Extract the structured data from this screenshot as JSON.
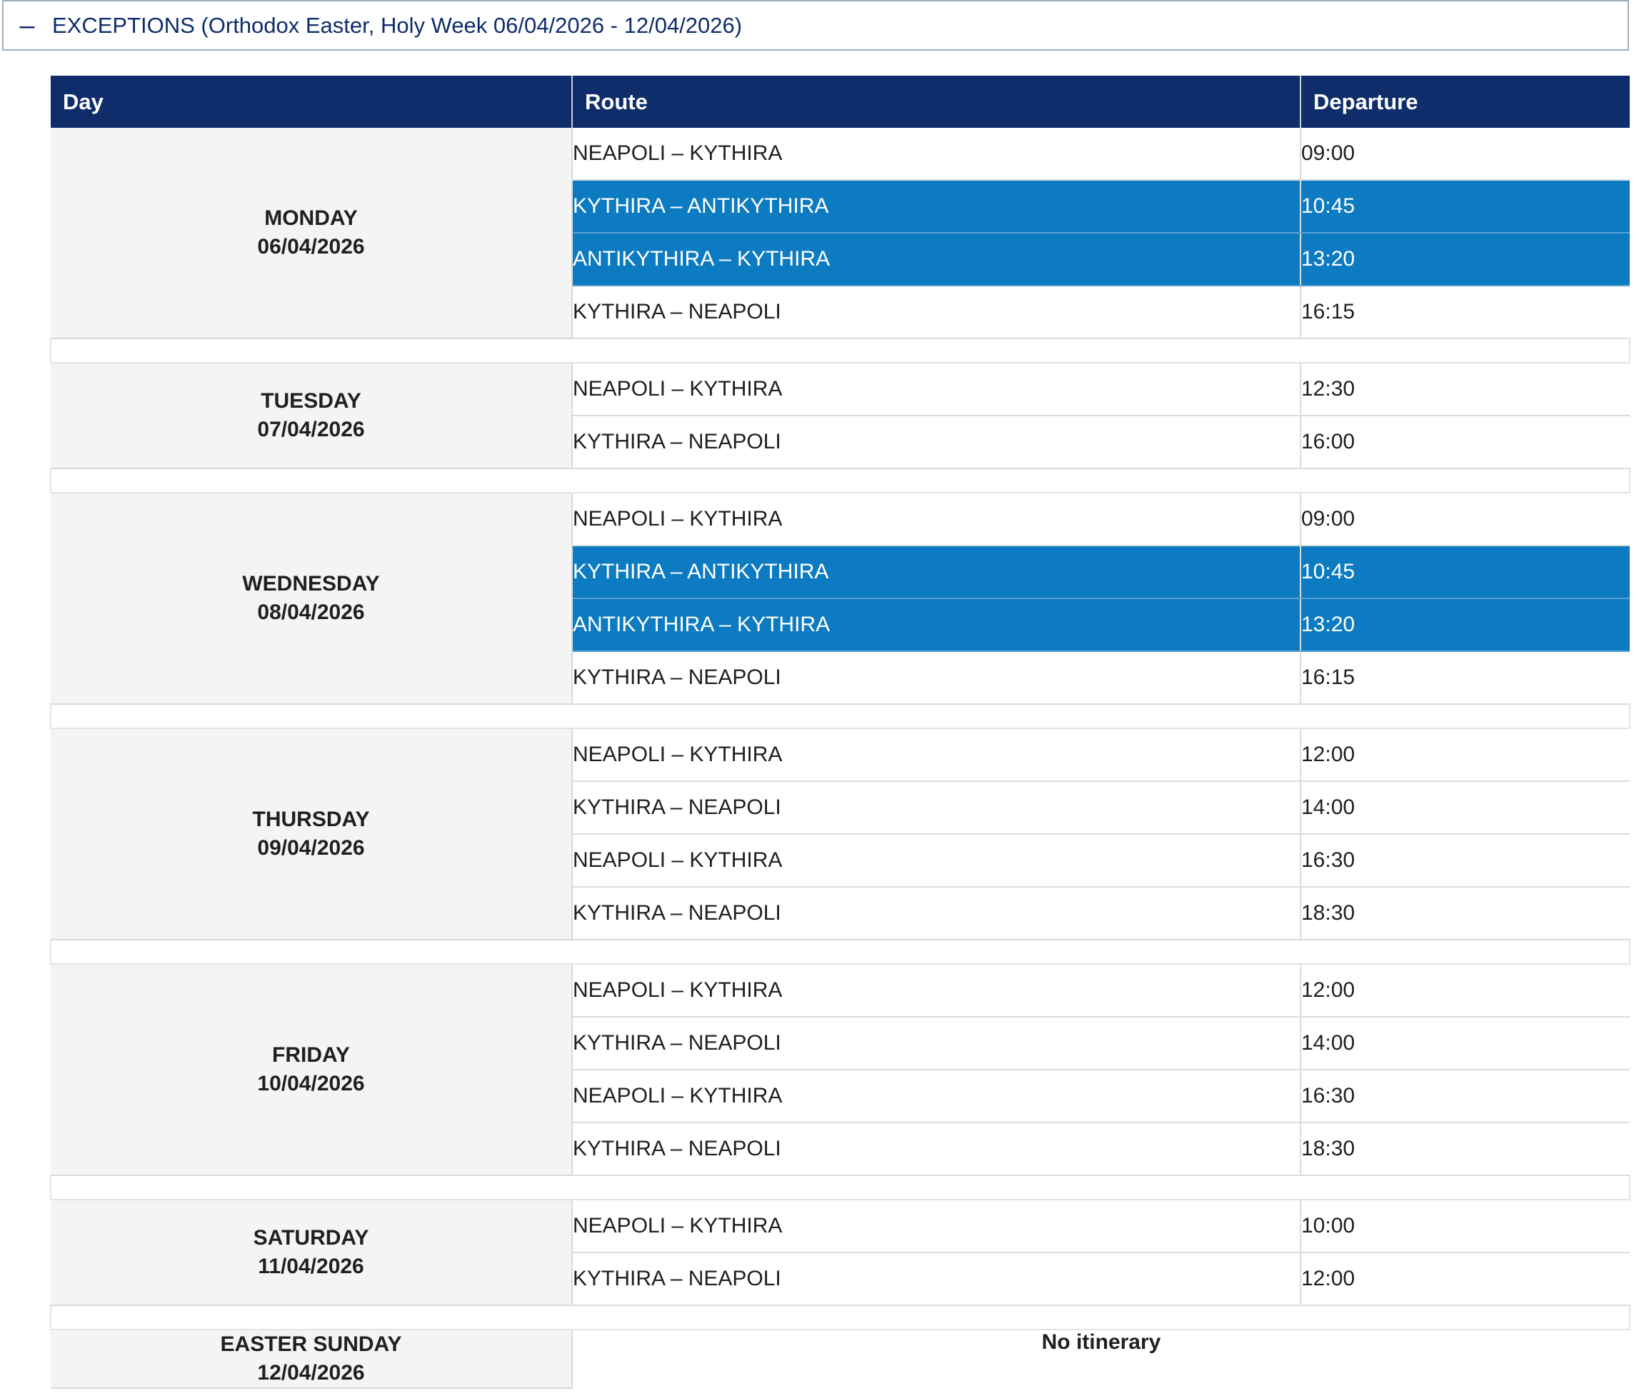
{
  "header": {
    "toggle_symbol": "–",
    "title": "EXCEPTIONS (Orthodox Easter, Holy Week 06/04/2026 - 12/04/2026)"
  },
  "table": {
    "columns": [
      "Day",
      "Route",
      "Departure"
    ],
    "days": [
      {
        "name": "MONDAY",
        "date": "06/04/2026",
        "trips": [
          {
            "route": "NEAPOLI – KYTHIRA",
            "time": "09:00",
            "highlight": false
          },
          {
            "route": "KYTHIRA – ANTIKYTHIRA",
            "time": "10:45",
            "highlight": true
          },
          {
            "route": "ANTIKYTHIRA – KYTHIRA",
            "time": "13:20",
            "highlight": true
          },
          {
            "route": "KYTHIRA – NEAPOLI",
            "time": "16:15",
            "highlight": false
          }
        ]
      },
      {
        "name": "TUESDAY",
        "date": "07/04/2026",
        "trips": [
          {
            "route": "NEAPOLI – KYTHIRA",
            "time": "12:30",
            "highlight": false
          },
          {
            "route": "KYTHIRA – NEAPOLI",
            "time": "16:00",
            "highlight": false
          }
        ]
      },
      {
        "name": "WEDNESDAY",
        "date": "08/04/2026",
        "trips": [
          {
            "route": "NEAPOLI – KYTHIRA",
            "time": "09:00",
            "highlight": false
          },
          {
            "route": "KYTHIRA – ANTIKYTHIRA",
            "time": "10:45",
            "highlight": true
          },
          {
            "route": "ANTIKYTHIRA – KYTHIRA",
            "time": "13:20",
            "highlight": true
          },
          {
            "route": "KYTHIRA – NEAPOLI",
            "time": "16:15",
            "highlight": false
          }
        ]
      },
      {
        "name": "THURSDAY",
        "date": "09/04/2026",
        "trips": [
          {
            "route": "NEAPOLI – KYTHIRA",
            "time": "12:00",
            "highlight": false
          },
          {
            "route": "KYTHIRA – NEAPOLI",
            "time": "14:00",
            "highlight": false
          },
          {
            "route": "NEAPOLI – KYTHIRA",
            "time": "16:30",
            "highlight": false
          },
          {
            "route": "KYTHIRA – NEAPOLI",
            "time": "18:30",
            "highlight": false
          }
        ]
      },
      {
        "name": "FRIDAY",
        "date": "10/04/2026",
        "trips": [
          {
            "route": "NEAPOLI – KYTHIRA",
            "time": "12:00",
            "highlight": false
          },
          {
            "route": "KYTHIRA – NEAPOLI",
            "time": "14:00",
            "highlight": false
          },
          {
            "route": "NEAPOLI – KYTHIRA",
            "time": "16:30",
            "highlight": false
          },
          {
            "route": "KYTHIRA – NEAPOLI",
            "time": "18:30",
            "highlight": false
          }
        ]
      },
      {
        "name": "SATURDAY",
        "date": "11/04/2026",
        "trips": [
          {
            "route": "NEAPOLI – KYTHIRA",
            "time": "10:00",
            "highlight": false
          },
          {
            "route": "KYTHIRA – NEAPOLI",
            "time": "12:00",
            "highlight": false
          }
        ]
      },
      {
        "name": "EASTER SUNDAY",
        "date": "12/04/2026",
        "note": "No itinerary",
        "trips": []
      }
    ]
  },
  "colors": {
    "header_bg": "#0f2d6b",
    "highlight_bg": "#0c7bc1",
    "day_cell_bg": "#f4f4f4"
  }
}
